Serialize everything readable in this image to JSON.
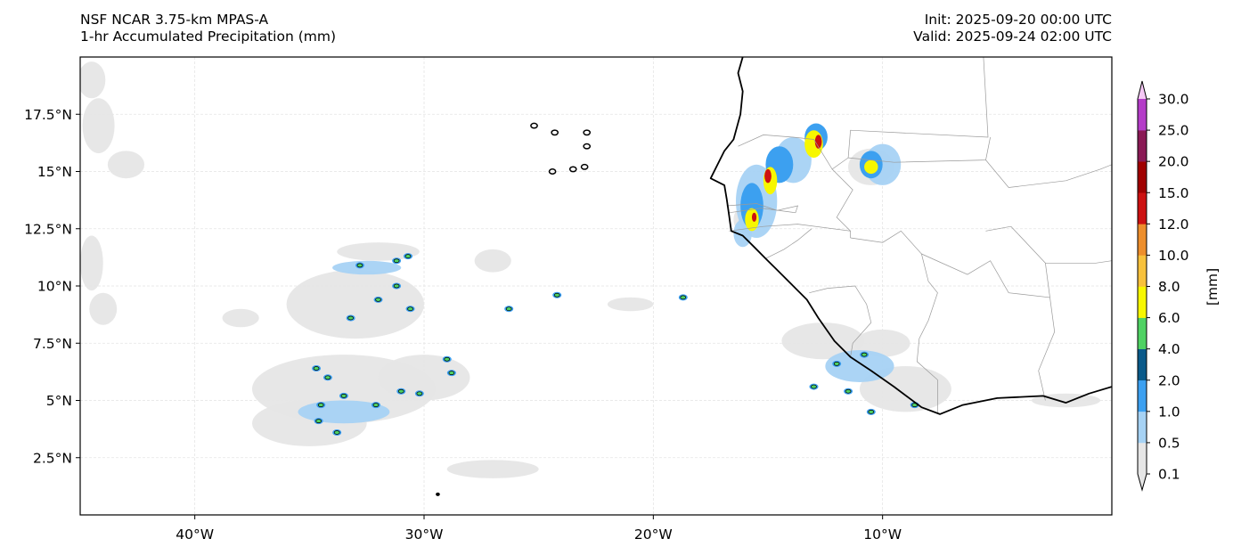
{
  "header": {
    "title_line1": "NSF NCAR 3.75-km MPAS-A",
    "title_line2": "1-hr Accumulated Precipitation (mm)",
    "init": "Init: 2025-09-20 00:00 UTC",
    "valid": "Valid: 2025-09-24 02:00 UTC"
  },
  "map": {
    "lon_range": [
      -45,
      0
    ],
    "lat_range": [
      0,
      20
    ],
    "x_ticks": [
      {
        "lon": -40,
        "label": "40°W"
      },
      {
        "lon": -30,
        "label": "30°W"
      },
      {
        "lon": -20,
        "label": "20°W"
      },
      {
        "lon": -10,
        "label": "10°W"
      }
    ],
    "y_ticks": [
      {
        "lat": 17.5,
        "label": "17.5°N"
      },
      {
        "lat": 15,
        "label": "15°N"
      },
      {
        "lat": 12.5,
        "label": "12.5°N"
      },
      {
        "lat": 10,
        "label": "10°N"
      },
      {
        "lat": 7.5,
        "label": "7.5°N"
      },
      {
        "lat": 5,
        "label": "5°N"
      },
      {
        "lat": 2.5,
        "label": "2.5°N"
      }
    ],
    "coastline": [
      [
        -16.1,
        20
      ],
      [
        -16.3,
        19.3
      ],
      [
        -16.1,
        18.5
      ],
      [
        -16.2,
        17.5
      ],
      [
        -16.5,
        16.4
      ],
      [
        -16.9,
        15.9
      ],
      [
        -17.5,
        14.7
      ],
      [
        -16.9,
        14.4
      ],
      [
        -16.8,
        13.8
      ],
      [
        -16.7,
        13.1
      ],
      [
        -16.6,
        12.4
      ],
      [
        -16.1,
        12.2
      ],
      [
        -15.6,
        11.7
      ],
      [
        -15.1,
        11.2
      ],
      [
        -14.6,
        10.7
      ],
      [
        -13.9,
        10.0
      ],
      [
        -13.3,
        9.4
      ],
      [
        -12.8,
        8.6
      ],
      [
        -12.1,
        7.6
      ],
      [
        -11.4,
        6.9
      ],
      [
        -10.5,
        6.3
      ],
      [
        -9.5,
        5.6
      ],
      [
        -8.3,
        4.7
      ],
      [
        -7.5,
        4.4
      ],
      [
        -6.5,
        4.8
      ],
      [
        -5.0,
        5.1
      ],
      [
        -3.0,
        5.2
      ],
      [
        -2.0,
        4.9
      ],
      [
        -1.0,
        5.3
      ],
      [
        0,
        5.6
      ]
    ],
    "islands": [
      [
        -25.2,
        17.0
      ],
      [
        -24.3,
        16.7
      ],
      [
        -22.9,
        16.7
      ],
      [
        -22.9,
        16.1
      ],
      [
        -24.4,
        15.0
      ],
      [
        -23.5,
        15.1
      ],
      [
        -23.0,
        15.2
      ],
      [
        -29.4,
        0.9
      ]
    ],
    "borders": [
      [
        [
          -16.3,
          16.1
        ],
        [
          -15.2,
          16.6
        ],
        [
          -13.9,
          16.5
        ],
        [
          -13.0,
          16.4
        ],
        [
          -12.2,
          15.1
        ],
        [
          -11.5,
          15.6
        ],
        [
          -11.4,
          16.8
        ],
        [
          -5.4,
          16.5
        ],
        [
          -5.6,
          20.0
        ]
      ],
      [
        [
          -16.8,
          13.5
        ],
        [
          -15.5,
          13.6
        ],
        [
          -14.6,
          13.3
        ],
        [
          -13.7,
          13.5
        ],
        [
          -13.8,
          13.2
        ],
        [
          -15.3,
          13.4
        ],
        [
          -16.7,
          13.2
        ]
      ],
      [
        [
          -16.7,
          12.4
        ],
        [
          -15.2,
          12.6
        ],
        [
          -13.7,
          12.7
        ],
        [
          -11.4,
          12.4
        ],
        [
          -11.4,
          12.1
        ]
      ],
      [
        [
          -15.1,
          11.2
        ],
        [
          -14.3,
          11.6
        ],
        [
          -13.7,
          12.0
        ],
        [
          -13.1,
          12.5
        ]
      ],
      [
        [
          -13.2,
          9.7
        ],
        [
          -12.4,
          9.9
        ],
        [
          -11.2,
          10.0
        ],
        [
          -10.7,
          9.2
        ],
        [
          -10.5,
          8.4
        ],
        [
          -11.3,
          7.5
        ],
        [
          -11.4,
          6.9
        ]
      ],
      [
        [
          -11.4,
          12.1
        ],
        [
          -10.0,
          11.9
        ],
        [
          -9.2,
          12.4
        ],
        [
          -8.3,
          11.4
        ],
        [
          -8.0,
          10.2
        ],
        [
          -7.6,
          9.7
        ],
        [
          -8.0,
          8.5
        ],
        [
          -8.4,
          7.7
        ],
        [
          -8.5,
          6.7
        ],
        [
          -7.6,
          5.9
        ],
        [
          -7.6,
          4.4
        ]
      ],
      [
        [
          -12.2,
          15.1
        ],
        [
          -11.3,
          14.2
        ],
        [
          -12.0,
          13.0
        ],
        [
          -11.4,
          12.4
        ]
      ],
      [
        [
          -11.5,
          15.6
        ],
        [
          -9.5,
          15.4
        ],
        [
          -5.5,
          15.5
        ],
        [
          -5.3,
          16.5
        ]
      ],
      [
        [
          -5.5,
          15.5
        ],
        [
          -4.5,
          14.3
        ],
        [
          -2.0,
          14.6
        ],
        [
          -0.5,
          15.1
        ],
        [
          0,
          15.3
        ]
      ],
      [
        [
          -8.3,
          11.4
        ],
        [
          -6.3,
          10.5
        ],
        [
          -5.3,
          11.1
        ],
        [
          -4.5,
          9.7
        ],
        [
          -2.7,
          9.5
        ],
        [
          -2.5,
          8.0
        ],
        [
          -3.2,
          6.3
        ],
        [
          -2.9,
          5.0
        ]
      ],
      [
        [
          -5.5,
          12.4
        ],
        [
          -4.4,
          12.6
        ],
        [
          -2.9,
          11.0
        ],
        [
          -0.7,
          11.0
        ],
        [
          0,
          11.1
        ]
      ],
      [
        [
          -2.9,
          11.0
        ],
        [
          -2.7,
          9.5
        ]
      ]
    ]
  },
  "colorbar": {
    "label": "[mm]",
    "levels": [
      "0.1",
      "0.5",
      "1.0",
      "2.0",
      "4.0",
      "6.0",
      "8.0",
      "10.0",
      "12.0",
      "15.0",
      "20.0",
      "25.0",
      "30.0"
    ],
    "colors": [
      "#e6e6e6",
      "#a6d2f4",
      "#3ca0f0",
      "#0a5a8a",
      "#4fd263",
      "#f7f700",
      "#f7c13c",
      "#ed8e2c",
      "#cc1111",
      "#a00000",
      "#8a1a55",
      "#b43cc8",
      "#f5c8f5"
    ]
  },
  "precip": {
    "gray_areas": [
      [
        -44.5,
        19.0,
        0.6,
        0.8
      ],
      [
        -44.2,
        17.0,
        0.7,
        1.2
      ],
      [
        -43.0,
        15.3,
        0.8,
        0.6
      ],
      [
        -44.5,
        11.0,
        0.5,
        1.2
      ],
      [
        -44.0,
        9.0,
        0.6,
        0.7
      ],
      [
        -32.0,
        11.5,
        1.8,
        0.4
      ],
      [
        -27.0,
        11.1,
        0.8,
        0.5
      ],
      [
        -38.0,
        8.6,
        0.8,
        0.4
      ],
      [
        -33.0,
        9.2,
        3.0,
        1.5
      ],
      [
        -33.5,
        5.5,
        4.0,
        1.5
      ],
      [
        -35.0,
        4.0,
        2.5,
        1.0
      ],
      [
        -30.0,
        6.0,
        2.0,
        1.0
      ],
      [
        -16.0,
        12.9,
        0.5,
        0.6
      ],
      [
        -10.5,
        15.2,
        1.0,
        0.8
      ],
      [
        -12.6,
        7.6,
        1.8,
        0.8
      ],
      [
        -10.0,
        7.5,
        1.2,
        0.6
      ],
      [
        -9.0,
        5.5,
        2.0,
        1.0
      ],
      [
        -2.0,
        5.0,
        1.5,
        0.3
      ],
      [
        -27.0,
        2.0,
        2.0,
        0.4
      ],
      [
        -21.0,
        9.2,
        1.0,
        0.3
      ]
    ],
    "light_blue_areas": [
      [
        -13.9,
        15.5,
        0.8,
        1.0
      ],
      [
        -10.0,
        15.3,
        0.8,
        0.9
      ],
      [
        -15.5,
        13.7,
        0.9,
        1.6
      ],
      [
        -16.1,
        12.3,
        0.4,
        0.6
      ],
      [
        -33.5,
        4.5,
        2.0,
        0.5
      ],
      [
        -32.5,
        10.8,
        1.5,
        0.3
      ],
      [
        -11.0,
        6.5,
        1.5,
        0.7
      ]
    ],
    "blue_areas": [
      [
        -14.5,
        15.3,
        0.6,
        0.8
      ],
      [
        -10.5,
        15.3,
        0.5,
        0.6
      ],
      [
        -15.7,
        13.5,
        0.5,
        1.0
      ],
      [
        -12.9,
        16.5,
        0.5,
        0.6
      ]
    ],
    "core_areas": [
      [
        -13.0,
        16.2,
        0.4,
        0.6
      ],
      [
        -14.9,
        14.6,
        0.3,
        0.6
      ],
      [
        -15.7,
        12.9,
        0.3,
        0.5
      ],
      [
        -10.5,
        15.2,
        0.3,
        0.3
      ]
    ],
    "red_areas": [
      [
        -12.8,
        16.3,
        0.15,
        0.3
      ],
      [
        -15.0,
        14.8,
        0.15,
        0.3
      ],
      [
        -15.6,
        13.0,
        0.1,
        0.2
      ]
    ],
    "cells": [
      [
        -32.8,
        10.9
      ],
      [
        -31.2,
        11.1
      ],
      [
        -30.7,
        11.3
      ],
      [
        -32.0,
        9.4
      ],
      [
        -30.6,
        9.0
      ],
      [
        -33.2,
        8.6
      ],
      [
        -34.2,
        6.0
      ],
      [
        -33.5,
        5.2
      ],
      [
        -34.5,
        4.8
      ],
      [
        -31.0,
        5.4
      ],
      [
        -30.2,
        5.3
      ],
      [
        -28.8,
        6.2
      ],
      [
        -33.8,
        3.6
      ],
      [
        -34.6,
        4.1
      ],
      [
        -29.0,
        6.8
      ],
      [
        -24.2,
        9.6
      ],
      [
        -13.0,
        5.6
      ],
      [
        -11.5,
        5.4
      ],
      [
        -8.6,
        4.8
      ],
      [
        -10.5,
        4.5
      ],
      [
        -12.0,
        6.6
      ],
      [
        -10.8,
        7.0
      ],
      [
        -26.3,
        9.0
      ],
      [
        -18.7,
        9.5
      ],
      [
        -34.7,
        6.4
      ],
      [
        -32.1,
        4.8
      ],
      [
        -31.2,
        10.0
      ]
    ]
  }
}
